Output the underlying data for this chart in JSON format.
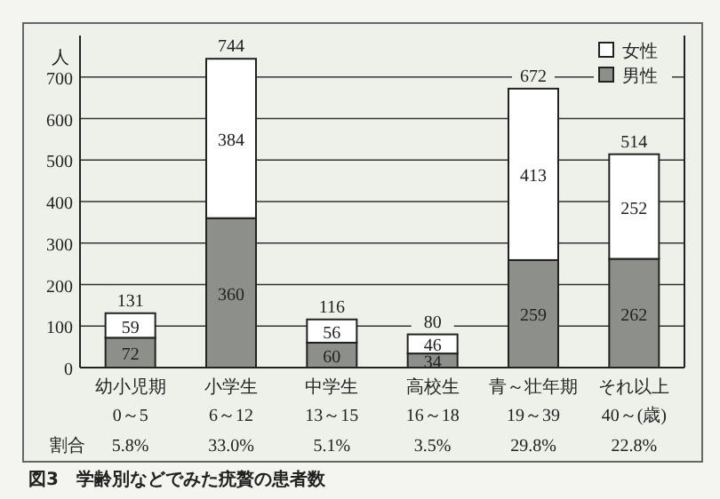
{
  "chart_data": {
    "type": "bar",
    "stacked": true,
    "title": "図3　学齢別などでみた疣贅の患者数",
    "ylabel": "人",
    "categories": [
      "幼小児期\n0～5",
      "小学生\n6～12",
      "中学生\n13～15",
      "高校生\n16～18",
      "青～壮年期\n19～39",
      "それ以上\n40～(歳)"
    ],
    "series": [
      {
        "name": "男性",
        "color": "#8c8f8a",
        "values": [
          72,
          360,
          60,
          34,
          259,
          262
        ]
      },
      {
        "name": "女性",
        "color": "#ffffff",
        "values": [
          59,
          384,
          56,
          46,
          413,
          252
        ]
      }
    ],
    "totals": [
      "131",
      "744",
      "116",
      "80",
      "672",
      "514"
    ],
    "data_labels": true,
    "ylim": [
      0,
      800
    ],
    "yticks": [
      0,
      100,
      200,
      300,
      400,
      500,
      600,
      700
    ],
    "grid": "y",
    "legend": "top right",
    "annotations": [
      "割合",
      "5.8%",
      "33.0%",
      "5.1%",
      "3.5%",
      "29.8%",
      "22.8%"
    ]
  }
}
